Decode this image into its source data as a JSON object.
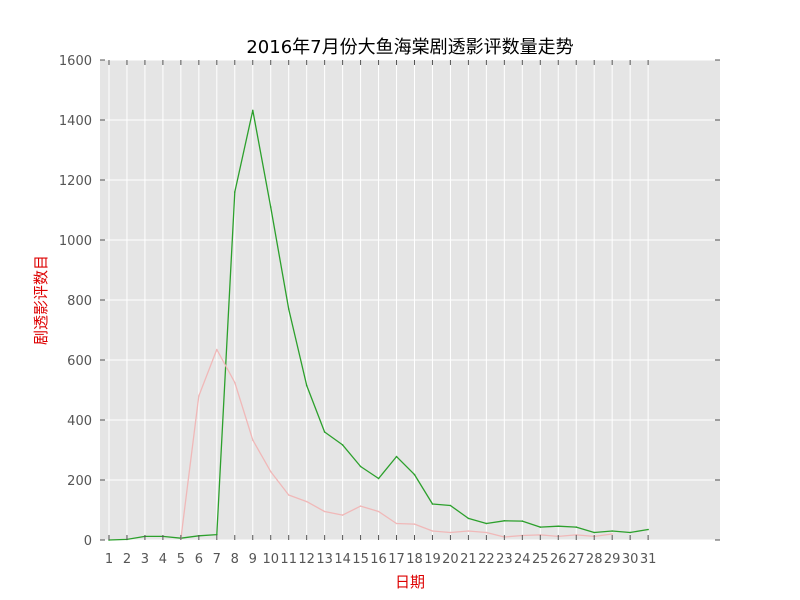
{
  "chart_data": {
    "type": "line",
    "title": "2016年7月份大鱼海棠剧透影评数量走势",
    "xlabel": "日期",
    "ylabel": "剧透影评数目",
    "ylim": [
      0,
      1600
    ],
    "xlim": [
      0.5,
      35
    ],
    "yticks": [
      0,
      200,
      400,
      600,
      800,
      1000,
      1200,
      1400,
      1600
    ],
    "x": [
      1,
      2,
      3,
      4,
      5,
      6,
      7,
      8,
      9,
      10,
      11,
      12,
      13,
      14,
      15,
      16,
      17,
      18,
      19,
      20,
      21,
      22,
      23,
      24,
      25,
      26,
      27,
      28,
      29,
      30,
      31
    ],
    "grid": true,
    "axis_label_color": "#dd0000",
    "background_color": "#e5e5e5",
    "series": [
      {
        "color": "#2ca02c",
        "x": [
          1,
          2,
          3,
          4,
          5,
          6,
          7,
          8,
          9,
          10,
          11,
          12,
          13,
          14,
          15,
          16,
          17,
          18,
          19,
          20,
          21,
          22,
          23,
          24,
          25,
          26,
          27,
          28,
          29,
          30,
          31
        ],
        "values": [
          0,
          2,
          12,
          12,
          6,
          14,
          18,
          1160,
          1432,
          1110,
          770,
          515,
          360,
          317,
          245,
          205,
          278,
          218,
          120,
          115,
          72,
          55,
          64,
          63,
          43,
          46,
          43,
          25,
          30,
          25,
          35
        ]
      },
      {
        "color": "#f0b8b8",
        "x": [
          5,
          6,
          7,
          8,
          9,
          10,
          11,
          12,
          13,
          14,
          15,
          16,
          17,
          18,
          19,
          20,
          21,
          22,
          23,
          24,
          25,
          26,
          27,
          28,
          29
        ],
        "values": [
          5,
          480,
          635,
          525,
          333,
          228,
          150,
          128,
          95,
          83,
          113,
          95,
          55,
          53,
          30,
          25,
          30,
          25,
          10,
          15,
          17,
          12,
          17,
          12,
          20
        ]
      }
    ]
  }
}
